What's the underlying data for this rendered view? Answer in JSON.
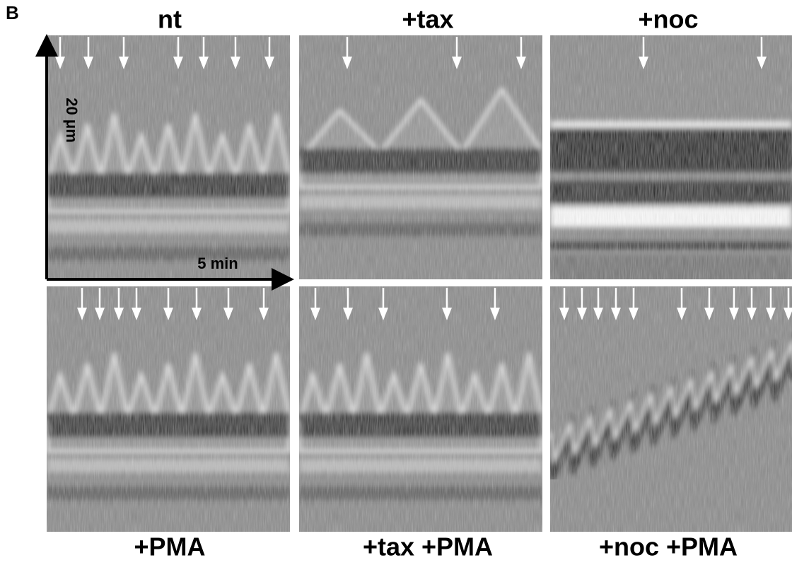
{
  "figure": {
    "panel_label": "B",
    "column_titles": [
      "nt",
      "+tax",
      "+noc"
    ],
    "bottom_titles": [
      "+PMA",
      "+tax +PMA",
      "+noc +PMA"
    ],
    "scale": {
      "length": "20 μm",
      "time": "5 min"
    }
  }
}
